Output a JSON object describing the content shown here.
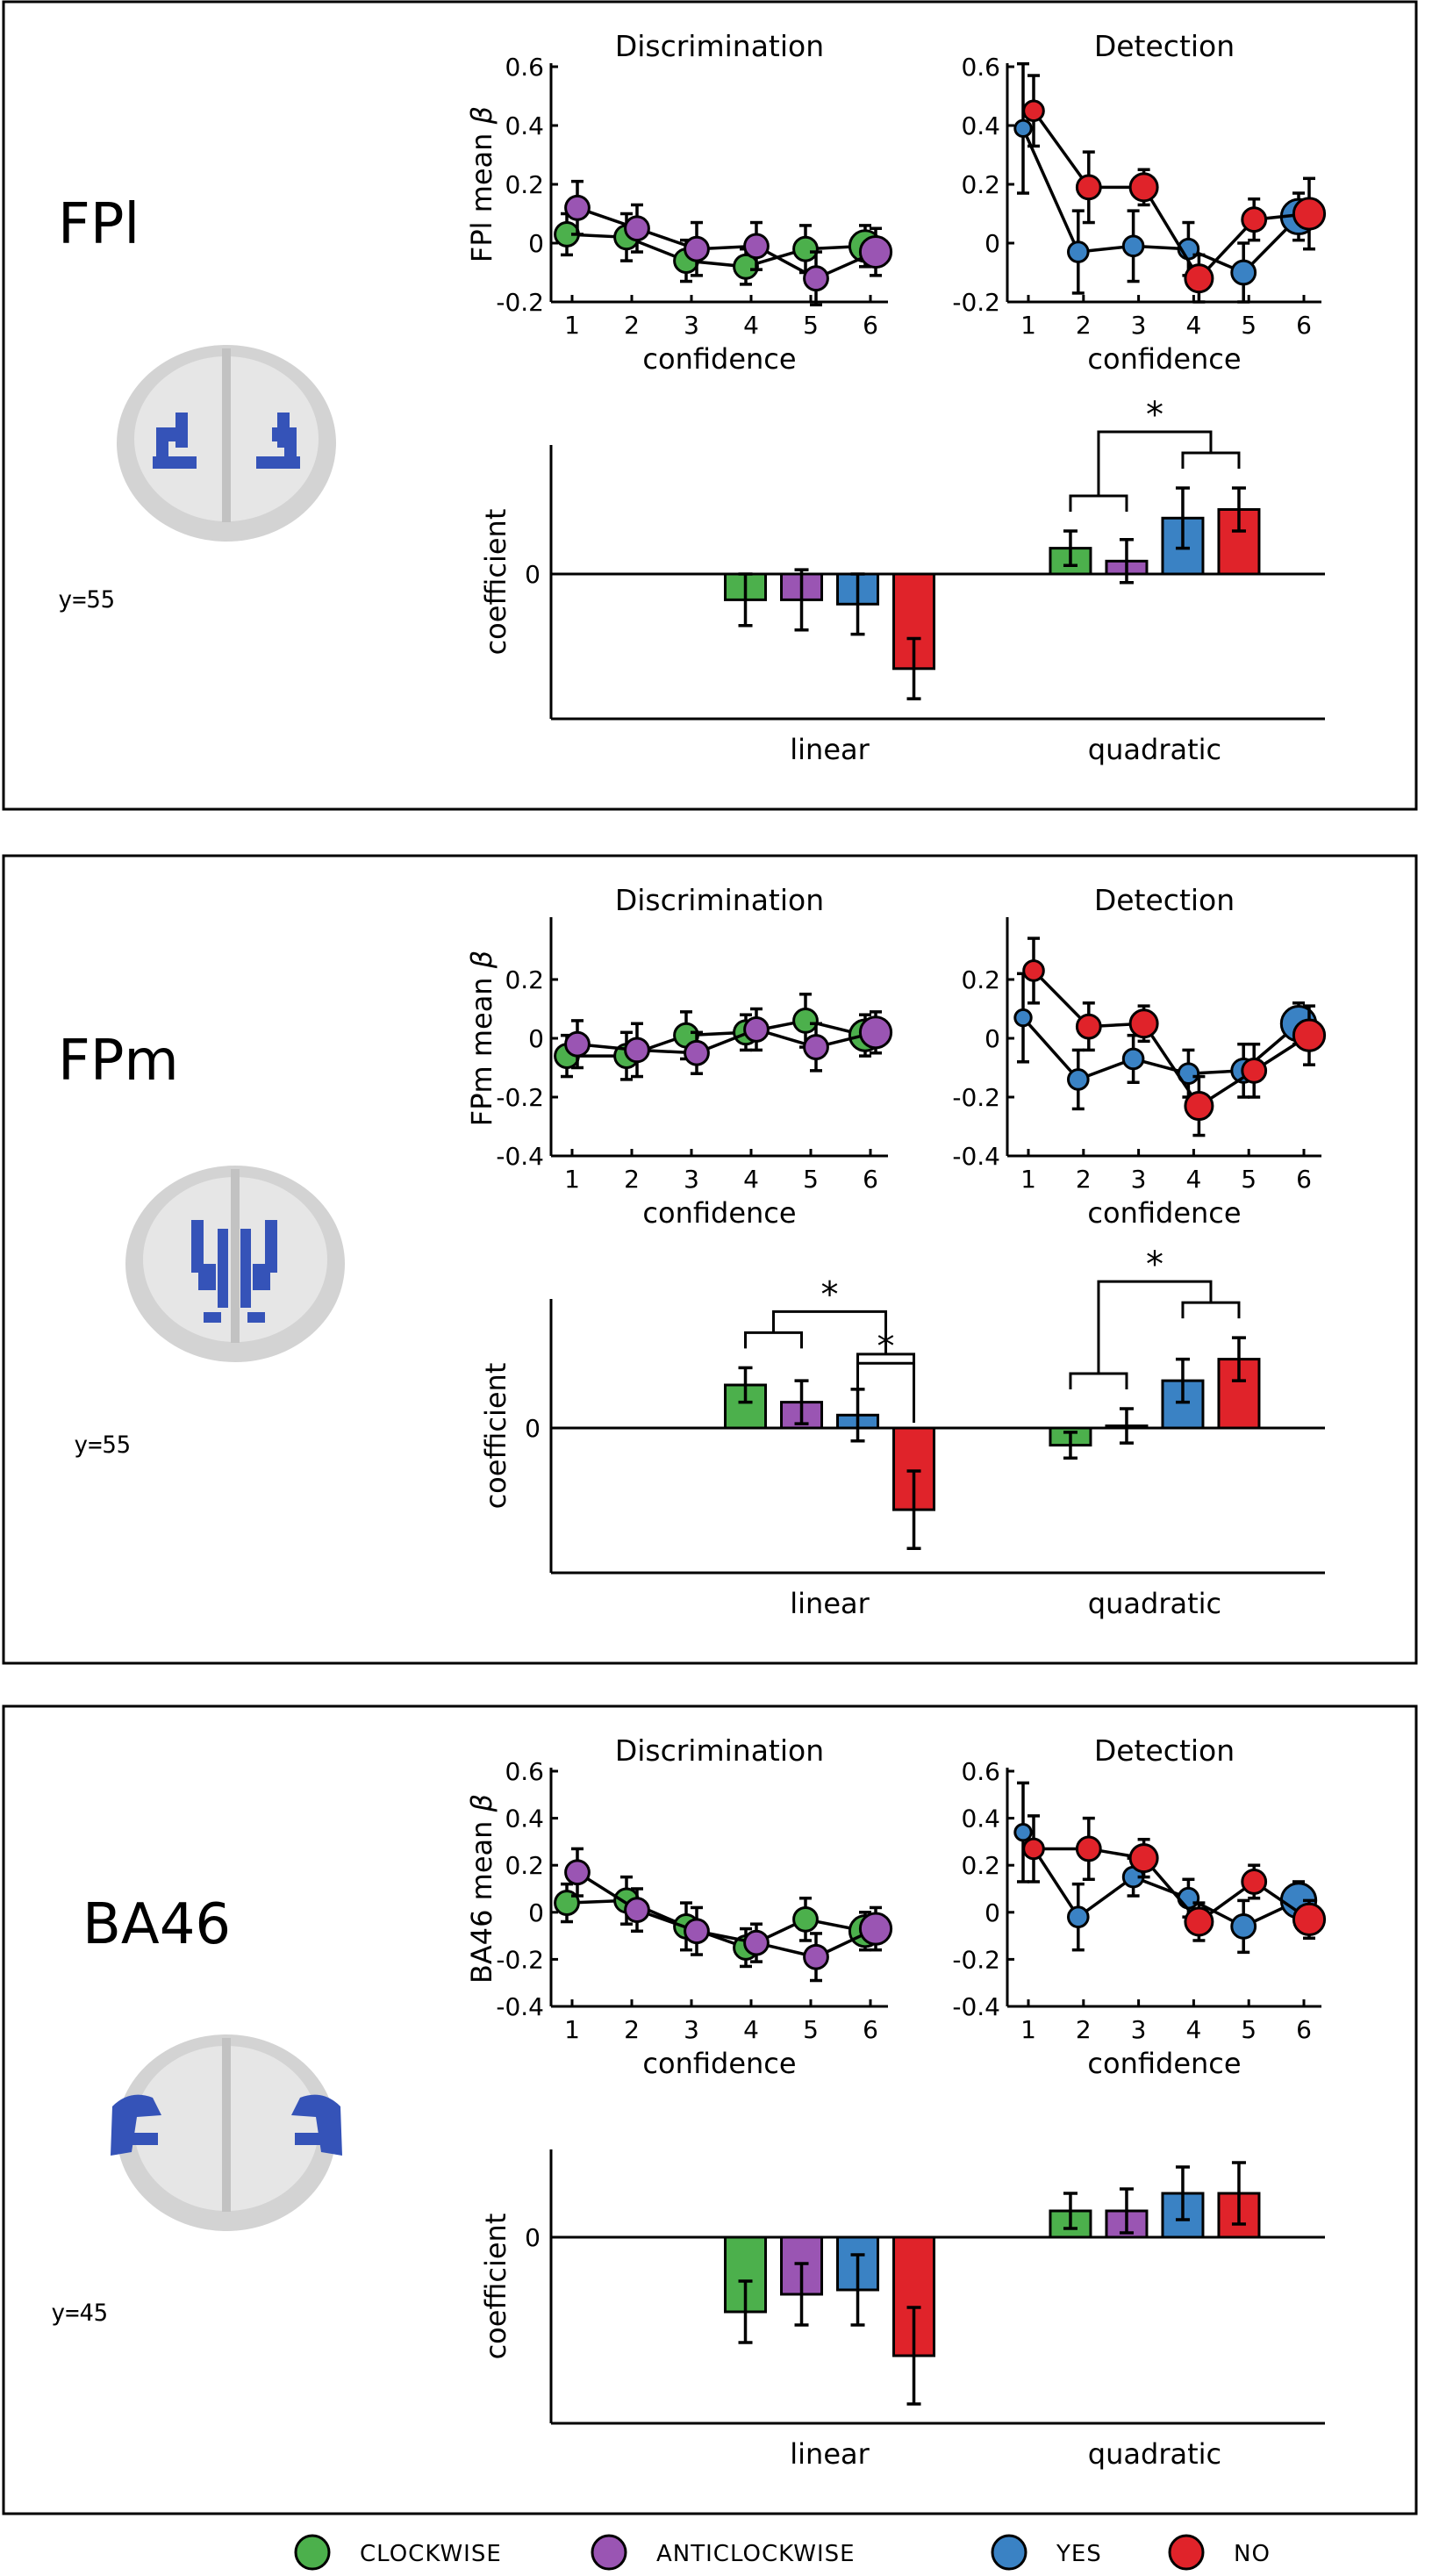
{
  "colors": {
    "clockwise": "#4cb04c",
    "anticlockwise": "#9a55b3",
    "yes": "#3a82c4",
    "no": "#e0232a",
    "roi": "#3553b8"
  },
  "legend": [
    {
      "key": "clockwise",
      "label": "CLOCKWISE"
    },
    {
      "key": "anticlockwise",
      "label": "ANTICLOCKWISE"
    },
    {
      "key": "yes",
      "label": "YES"
    },
    {
      "key": "no",
      "label": "NO"
    }
  ],
  "common": {
    "xlabel": "confidence",
    "coef_ylabel": "coefficient",
    "left_title": "Discrimination",
    "right_title": "Detection",
    "bar_groups": [
      "linear",
      "quadratic"
    ],
    "x_ticks": [
      "1",
      "2",
      "3",
      "4",
      "5",
      "6"
    ],
    "zero_label": "0",
    "star": "*"
  },
  "panels": [
    {
      "region": "FPl",
      "coord_label": "y=55",
      "ylabel_text": "FPl mean ",
      "ylabel_beta": "β",
      "brain_style": "lateral",
      "chart_data": [
        {
          "type": "line",
          "title": "Discrimination",
          "xlabel": "confidence",
          "ylabel": "FPl mean β",
          "x": [
            1,
            2,
            3,
            4,
            5,
            6
          ],
          "ylim": [
            -0.2,
            0.6
          ],
          "yticks": [
            -0.2,
            0,
            0.2,
            0.4,
            0.6
          ],
          "ytick_labels": [
            "-0.2",
            "0",
            "0.2",
            "0.4",
            "0.6"
          ],
          "series": [
            {
              "name": "CLOCKWISE",
              "key": "clockwise",
              "values": [
                0.03,
                0.02,
                -0.06,
                -0.08,
                -0.02,
                -0.01
              ],
              "err": [
                0.07,
                0.08,
                0.07,
                0.06,
                0.08,
                0.07
              ],
              "sizes": [
                2,
                2,
                2,
                2,
                2,
                3
              ]
            },
            {
              "name": "ANTICLOCKWISE",
              "key": "anticlockwise",
              "values": [
                0.12,
                0.05,
                -0.02,
                -0.01,
                -0.12,
                -0.03
              ],
              "err": [
                0.09,
                0.08,
                0.09,
                0.08,
                0.09,
                0.08
              ],
              "sizes": [
                2,
                2,
                2,
                2,
                2,
                3
              ]
            }
          ]
        },
        {
          "type": "line",
          "title": "Detection",
          "xlabel": "confidence",
          "x": [
            1,
            2,
            3,
            4,
            5,
            6
          ],
          "ylim": [
            -0.2,
            0.6
          ],
          "yticks": [
            -0.2,
            0,
            0.2,
            0.4,
            0.6
          ],
          "ytick_labels": [
            "-0.2",
            "0",
            "0.2",
            "0.4",
            "0.6"
          ],
          "series": [
            {
              "name": "YES",
              "key": "yes",
              "values": [
                0.39,
                -0.03,
                -0.01,
                -0.02,
                -0.1,
                0.09
              ],
              "err": [
                0.22,
                0.14,
                0.12,
                0.09,
                0.1,
                0.08
              ],
              "sizes": [
                1,
                1.5,
                1.5,
                1.5,
                2,
                3.5
              ]
            },
            {
              "name": "NO",
              "key": "no",
              "values": [
                0.45,
                0.19,
                0.19,
                -0.12,
                0.08,
                0.1
              ],
              "err": [
                0.12,
                0.12,
                0.06,
                0.08,
                0.07,
                0.12
              ],
              "sizes": [
                1.5,
                2,
                2.5,
                2.5,
                2,
                3
              ]
            }
          ]
        },
        {
          "type": "bar",
          "ylabel": "coefficient",
          "categories": [
            "linear",
            "quadratic"
          ],
          "ylim": [
            -0.3,
            0.3
          ],
          "series": [
            {
              "name": "CLOCKWISE",
              "key": "clockwise",
              "values": [
                -0.06,
                0.06
              ],
              "err": [
                0.06,
                0.04
              ]
            },
            {
              "name": "ANTICLOCKWISE",
              "key": "anticlockwise",
              "values": [
                -0.06,
                0.03
              ],
              "err": [
                0.07,
                0.05
              ]
            },
            {
              "name": "YES",
              "key": "yes",
              "values": [
                -0.07,
                0.13
              ],
              "err": [
                0.07,
                0.07
              ]
            },
            {
              "name": "NO",
              "key": "no",
              "values": [
                -0.22,
                0.15
              ],
              "err": [
                0.07,
                0.05
              ]
            }
          ],
          "annotations": [
            {
              "text": "*",
              "group": "quadratic",
              "between": [
                "clockwise+anticlockwise",
                "yes+no"
              ]
            }
          ]
        }
      ]
    },
    {
      "region": "FPm",
      "coord_label": "y=55",
      "ylabel_text": "FPm mean ",
      "ylabel_beta": "β",
      "brain_style": "medial",
      "chart_data": [
        {
          "type": "line",
          "title": "Discrimination",
          "xlabel": "confidence",
          "ylabel": "FPm mean β",
          "x": [
            1,
            2,
            3,
            4,
            5,
            6
          ],
          "ylim": [
            -0.4,
            0.4
          ],
          "yticks": [
            -0.4,
            -0.2,
            0,
            0.2
          ],
          "ytick_labels": [
            "-0.4",
            "-0.2",
            "0",
            "0.2"
          ],
          "series": [
            {
              "name": "CLOCKWISE",
              "key": "clockwise",
              "values": [
                -0.06,
                -0.06,
                0.01,
                0.02,
                0.06,
                0.01
              ],
              "err": [
                0.07,
                0.08,
                0.08,
                0.06,
                0.09,
                0.07
              ],
              "sizes": [
                2,
                2,
                2,
                2,
                2,
                3
              ]
            },
            {
              "name": "ANTICLOCKWISE",
              "key": "anticlockwise",
              "values": [
                -0.02,
                -0.04,
                -0.05,
                0.03,
                -0.03,
                0.02
              ],
              "err": [
                0.08,
                0.09,
                0.07,
                0.07,
                0.08,
                0.07
              ],
              "sizes": [
                2,
                2,
                2,
                2,
                2,
                3
              ]
            }
          ]
        },
        {
          "type": "line",
          "title": "Detection",
          "xlabel": "confidence",
          "x": [
            1,
            2,
            3,
            4,
            5,
            6
          ],
          "ylim": [
            -0.4,
            0.4
          ],
          "yticks": [
            -0.4,
            -0.2,
            0,
            0.2
          ],
          "ytick_labels": [
            "-0.4",
            "-0.2",
            "0",
            "0.2"
          ],
          "series": [
            {
              "name": "YES",
              "key": "yes",
              "values": [
                0.07,
                -0.14,
                -0.07,
                -0.12,
                -0.11,
                0.05
              ],
              "err": [
                0.15,
                0.1,
                0.08,
                0.08,
                0.09,
                0.07
              ],
              "sizes": [
                1,
                1.5,
                1.5,
                1.5,
                2,
                3.5
              ]
            },
            {
              "name": "NO",
              "key": "no",
              "values": [
                0.23,
                0.04,
                0.05,
                -0.23,
                -0.11,
                0.01
              ],
              "err": [
                0.11,
                0.08,
                0.06,
                0.1,
                0.09,
                0.1
              ],
              "sizes": [
                1.5,
                2,
                2.5,
                2.5,
                2,
                3
              ]
            }
          ]
        },
        {
          "type": "bar",
          "ylabel": "coefficient",
          "categories": [
            "linear",
            "quadratic"
          ],
          "ylim": [
            -0.3,
            0.3
          ],
          "series": [
            {
              "name": "CLOCKWISE",
              "key": "clockwise",
              "values": [
                0.1,
                -0.04
              ],
              "err": [
                0.04,
                0.03
              ]
            },
            {
              "name": "ANTICLOCKWISE",
              "key": "anticlockwise",
              "values": [
                0.06,
                0.005
              ],
              "err": [
                0.05,
                0.04
              ]
            },
            {
              "name": "YES",
              "key": "yes",
              "values": [
                0.03,
                0.11
              ],
              "err": [
                0.06,
                0.05
              ]
            },
            {
              "name": "NO",
              "key": "no",
              "values": [
                -0.19,
                0.16
              ],
              "err": [
                0.09,
                0.05
              ]
            }
          ],
          "annotations": [
            {
              "text": "*",
              "group": "linear",
              "between": [
                "clockwise+anticlockwise",
                "yes+no"
              ]
            },
            {
              "text": "*",
              "group": "linear",
              "between": [
                "yes",
                "no"
              ]
            },
            {
              "text": "*",
              "group": "quadratic",
              "between": [
                "clockwise+anticlockwise",
                "yes+no"
              ]
            }
          ]
        }
      ]
    },
    {
      "region": "BA46",
      "coord_label": "y=45",
      "ylabel_text": "BA46 mean ",
      "ylabel_beta": "β",
      "brain_style": "dorsolateral",
      "chart_data": [
        {
          "type": "line",
          "title": "Discrimination",
          "xlabel": "confidence",
          "ylabel": "BA46 mean β",
          "x": [
            1,
            2,
            3,
            4,
            5,
            6
          ],
          "ylim": [
            -0.4,
            0.6
          ],
          "yticks": [
            -0.4,
            -0.2,
            0,
            0.2,
            0.4,
            0.6
          ],
          "ytick_labels": [
            "-0.4",
            "-0.2",
            "0",
            "0.2",
            "0.4",
            "0.6"
          ],
          "series": [
            {
              "name": "CLOCKWISE",
              "key": "clockwise",
              "values": [
                0.04,
                0.05,
                -0.06,
                -0.15,
                -0.03,
                -0.08
              ],
              "err": [
                0.08,
                0.1,
                0.1,
                0.08,
                0.09,
                0.08
              ],
              "sizes": [
                2,
                2,
                2,
                2,
                2,
                3
              ]
            },
            {
              "name": "ANTICLOCKWISE",
              "key": "anticlockwise",
              "values": [
                0.17,
                0.01,
                -0.08,
                -0.13,
                -0.19,
                -0.07
              ],
              "err": [
                0.1,
                0.09,
                0.1,
                0.08,
                0.1,
                0.09
              ],
              "sizes": [
                2,
                2,
                2,
                2,
                2,
                3
              ]
            }
          ]
        },
        {
          "type": "line",
          "title": "Detection",
          "xlabel": "confidence",
          "x": [
            1,
            2,
            3,
            4,
            5,
            6
          ],
          "ylim": [
            -0.4,
            0.6
          ],
          "yticks": [
            -0.4,
            -0.2,
            0,
            0.2,
            0.4,
            0.6
          ],
          "ytick_labels": [
            "-0.4",
            "-0.2",
            "0",
            "0.2",
            "0.4",
            "0.6"
          ],
          "series": [
            {
              "name": "YES",
              "key": "yes",
              "values": [
                0.34,
                -0.02,
                0.15,
                0.06,
                -0.06,
                0.05
              ],
              "err": [
                0.21,
                0.14,
                0.08,
                0.08,
                0.11,
                0.08
              ],
              "sizes": [
                1,
                1.5,
                1.5,
                1.5,
                2,
                3.5
              ]
            },
            {
              "name": "NO",
              "key": "no",
              "values": [
                0.27,
                0.27,
                0.23,
                -0.04,
                0.13,
                -0.03
              ],
              "err": [
                0.14,
                0.13,
                0.08,
                0.08,
                0.07,
                0.08
              ],
              "sizes": [
                1.5,
                2,
                2.5,
                2.5,
                2,
                3
              ]
            }
          ]
        },
        {
          "type": "bar",
          "ylabel": "coefficient",
          "categories": [
            "linear",
            "quadratic"
          ],
          "ylim": [
            -0.4,
            0.2
          ],
          "series": [
            {
              "name": "CLOCKWISE",
              "key": "clockwise",
              "values": [
                -0.17,
                0.06
              ],
              "err": [
                0.07,
                0.04
              ]
            },
            {
              "name": "ANTICLOCKWISE",
              "key": "anticlockwise",
              "values": [
                -0.13,
                0.06
              ],
              "err": [
                0.07,
                0.05
              ]
            },
            {
              "name": "YES",
              "key": "yes",
              "values": [
                -0.12,
                0.1
              ],
              "err": [
                0.08,
                0.06
              ]
            },
            {
              "name": "NO",
              "key": "no",
              "values": [
                -0.27,
                0.1
              ],
              "err": [
                0.11,
                0.07
              ]
            }
          ]
        }
      ]
    }
  ]
}
